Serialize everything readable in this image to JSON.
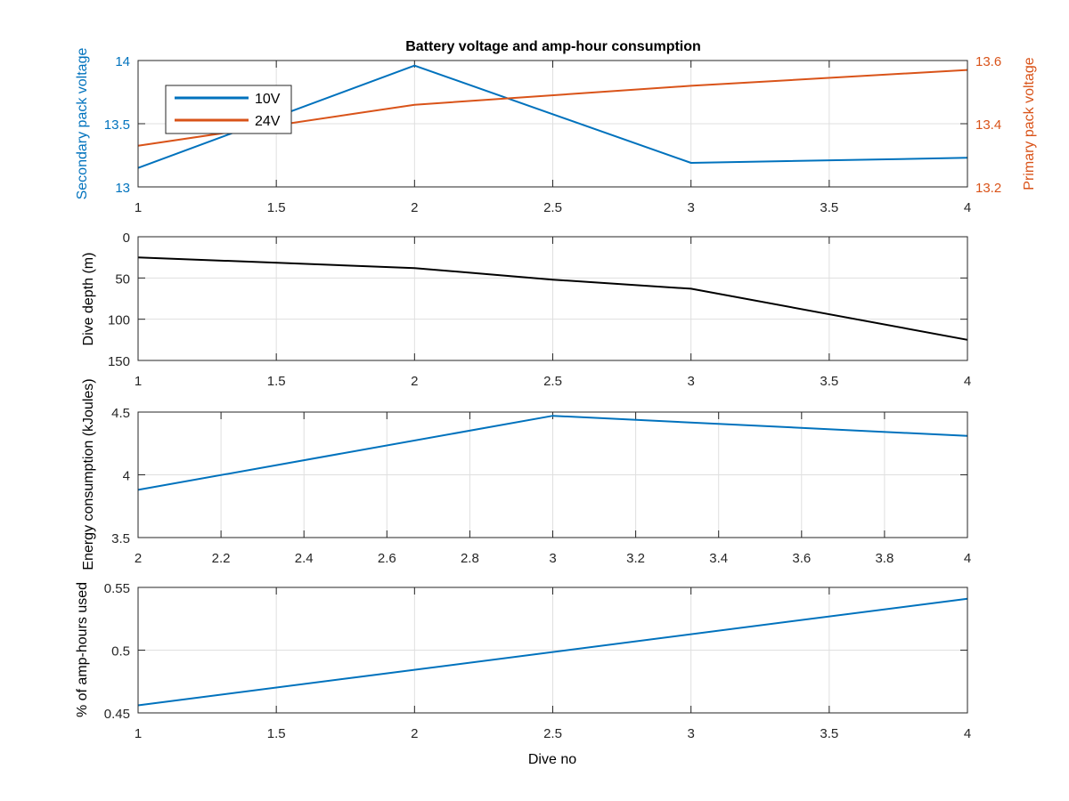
{
  "figure": {
    "background": "#ffffff"
  },
  "chart_data": [
    {
      "id": "p1",
      "type": "line",
      "title": "Battery voltage and amp-hour consumption",
      "xlim": [
        1,
        4
      ],
      "xticks": [
        1,
        1.5,
        2,
        2.5,
        3,
        3.5,
        4
      ],
      "xtick_labels": [
        "1",
        "1.5",
        "2",
        "2.5",
        "3",
        "3.5",
        "4"
      ],
      "grid": true,
      "ylabel_left": "Secondary pack voltage",
      "ylabel_right": "Primary pack voltage",
      "ylim_left": [
        13,
        14
      ],
      "yticks_left": [
        13,
        13.5,
        14
      ],
      "ytick_labels_left": [
        "13",
        "13.5",
        "14"
      ],
      "ylim_right": [
        13.2,
        13.6
      ],
      "yticks_right": [
        13.2,
        13.4,
        13.6
      ],
      "ytick_labels_right": [
        "13.2",
        "13.4",
        "13.6"
      ],
      "left_axis_color": "#0072bd",
      "right_axis_color": "#d95319",
      "legend_position": "top-left",
      "series": [
        {
          "name": "10V",
          "axis": "left",
          "color": "#0072bd",
          "x": [
            1,
            2,
            3,
            4
          ],
          "y": [
            13.15,
            13.96,
            13.19,
            13.23
          ]
        },
        {
          "name": "24V",
          "axis": "right",
          "color": "#d95319",
          "x": [
            1,
            2,
            3,
            4
          ],
          "y": [
            13.33,
            13.46,
            13.52,
            13.57
          ]
        }
      ]
    },
    {
      "id": "p2",
      "type": "line",
      "xlim": [
        1,
        4
      ],
      "xticks": [
        1,
        1.5,
        2,
        2.5,
        3,
        3.5,
        4
      ],
      "xtick_labels": [
        "1",
        "1.5",
        "2",
        "2.5",
        "3",
        "3.5",
        "4"
      ],
      "grid": true,
      "ylabel_left": "Dive depth (m)",
      "ylim_left": [
        0,
        150
      ],
      "y_reversed": true,
      "yticks_left": [
        0,
        50,
        100,
        150
      ],
      "ytick_labels_left": [
        "0",
        "50",
        "100",
        "150"
      ],
      "series": [
        {
          "axis": "left",
          "color": "#000000",
          "x": [
            1,
            2,
            2.5,
            3,
            4
          ],
          "y": [
            25,
            38,
            52,
            63,
            125
          ]
        }
      ]
    },
    {
      "id": "p3",
      "type": "line",
      "xlim": [
        2,
        4
      ],
      "xticks": [
        2,
        2.2,
        2.4,
        2.6,
        2.8,
        3,
        3.2,
        3.4,
        3.6,
        3.8,
        4
      ],
      "xtick_labels": [
        "2",
        "2.2",
        "2.4",
        "2.6",
        "2.8",
        "3",
        "3.2",
        "3.4",
        "3.6",
        "3.8",
        "4"
      ],
      "grid": true,
      "ylabel_left": "Energy consumption (kJoules)",
      "ylim_left": [
        3.5,
        4.5
      ],
      "yticks_left": [
        3.5,
        4,
        4.5
      ],
      "ytick_labels_left": [
        "3.5",
        "4",
        "4.5"
      ],
      "series": [
        {
          "axis": "left",
          "color": "#0072bd",
          "x": [
            2,
            3,
            4
          ],
          "y": [
            3.88,
            4.47,
            4.31
          ]
        }
      ]
    },
    {
      "id": "p4",
      "type": "line",
      "xlim": [
        1,
        4
      ],
      "xticks": [
        1,
        1.5,
        2,
        2.5,
        3,
        3.5,
        4
      ],
      "xtick_labels": [
        "1",
        "1.5",
        "2",
        "2.5",
        "3",
        "3.5",
        "4"
      ],
      "grid": true,
      "xlabel": "Dive no",
      "ylabel_left": "% of amp-hours used",
      "ylim_left": [
        0.45,
        0.55
      ],
      "yticks_left": [
        0.45,
        0.5,
        0.55
      ],
      "ytick_labels_left": [
        "0.45",
        "0.5",
        "0.55"
      ],
      "series": [
        {
          "axis": "left",
          "color": "#0072bd",
          "x": [
            1,
            4
          ],
          "y": [
            0.456,
            0.541
          ]
        }
      ]
    }
  ]
}
